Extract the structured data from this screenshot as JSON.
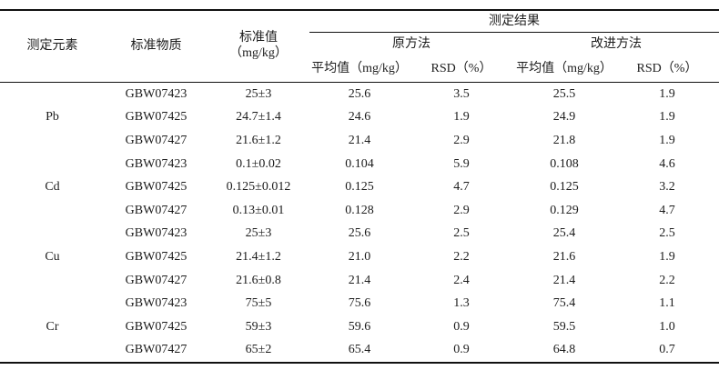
{
  "table": {
    "header": {
      "col_element": "测定元素",
      "col_material": "标准物质",
      "col_standard_line1": "标准值",
      "col_standard_line2": "（mg/kg）",
      "group_result": "测定结果",
      "group_original": "原方法",
      "group_improved": "改进方法",
      "col_mean_original": "平均值（mg/kg）",
      "col_rsd_original": "RSD（%）",
      "col_mean_improved": "平均值（mg/kg）",
      "col_rsd_improved": "RSD（%）"
    },
    "colors": {
      "rule": "#111111",
      "text": "#1c1c1c",
      "background": "#ffffff"
    },
    "groups": [
      {
        "element": "Pb",
        "rows": [
          {
            "material": "GBW07423",
            "standard": "25±3",
            "orig_mean": "25.6",
            "orig_rsd": "3.5",
            "imp_mean": "25.5",
            "imp_rsd": "1.9"
          },
          {
            "material": "GBW07425",
            "standard": "24.7±1.4",
            "orig_mean": "24.6",
            "orig_rsd": "1.9",
            "imp_mean": "24.9",
            "imp_rsd": "1.9"
          },
          {
            "material": "GBW07427",
            "standard": "21.6±1.2",
            "orig_mean": "21.4",
            "orig_rsd": "2.9",
            "imp_mean": "21.8",
            "imp_rsd": "1.9"
          }
        ]
      },
      {
        "element": "Cd",
        "rows": [
          {
            "material": "GBW07423",
            "standard": "0.1±0.02",
            "orig_mean": "0.104",
            "orig_rsd": "5.9",
            "imp_mean": "0.108",
            "imp_rsd": "4.6"
          },
          {
            "material": "GBW07425",
            "standard": "0.125±0.012",
            "orig_mean": "0.125",
            "orig_rsd": "4.7",
            "imp_mean": "0.125",
            "imp_rsd": "3.2"
          },
          {
            "material": "GBW07427",
            "standard": "0.13±0.01",
            "orig_mean": "0.128",
            "orig_rsd": "2.9",
            "imp_mean": "0.129",
            "imp_rsd": "4.7"
          }
        ]
      },
      {
        "element": "Cu",
        "rows": [
          {
            "material": "GBW07423",
            "standard": "25±3",
            "orig_mean": "25.6",
            "orig_rsd": "2.5",
            "imp_mean": "25.4",
            "imp_rsd": "2.5"
          },
          {
            "material": "GBW07425",
            "standard": "21.4±1.2",
            "orig_mean": "21.0",
            "orig_rsd": "2.2",
            "imp_mean": "21.6",
            "imp_rsd": "1.9"
          },
          {
            "material": "GBW07427",
            "standard": "21.6±0.8",
            "orig_mean": "21.4",
            "orig_rsd": "2.4",
            "imp_mean": "21.4",
            "imp_rsd": "2.2"
          }
        ]
      },
      {
        "element": "Cr",
        "rows": [
          {
            "material": "GBW07423",
            "standard": "75±5",
            "orig_mean": "75.6",
            "orig_rsd": "1.3",
            "imp_mean": "75.4",
            "imp_rsd": "1.1"
          },
          {
            "material": "GBW07425",
            "standard": "59±3",
            "orig_mean": "59.6",
            "orig_rsd": "0.9",
            "imp_mean": "59.5",
            "imp_rsd": "1.0"
          },
          {
            "material": "GBW07427",
            "standard": "65±2",
            "orig_mean": "65.4",
            "orig_rsd": "0.9",
            "imp_mean": "64.8",
            "imp_rsd": "0.7"
          }
        ]
      }
    ]
  }
}
